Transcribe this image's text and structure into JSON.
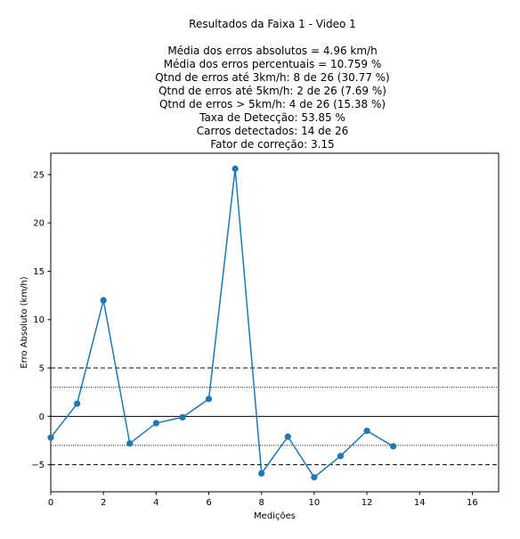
{
  "chart_data": {
    "type": "line",
    "title_lines": [
      "Resultados da Faixa 1 - Video 1",
      "",
      "Média dos erros absolutos =  4.96 km/h",
      "Média dos erros percentuais = 10.759 %",
      "Qtnd de erros até 3km/h: 8 de 26 (30.77 %)",
      "Qtnd de erros até 5km/h: 2 de 26 (7.69 %)",
      "Qtnd de erros > 5km/h: 4 de 26 (15.38 %)",
      "Taxa de Detecção: 53.85 %",
      "Carros detectados: 14 de 26",
      "Fator de correção: 3.15"
    ],
    "xlabel": "Medições",
    "ylabel": "Erro Absoluto (km/h)",
    "xlim": [
      0,
      17
    ],
    "ylim": [
      -7.8,
      27.2
    ],
    "x_ticks": [
      0,
      2,
      4,
      6,
      8,
      10,
      12,
      14,
      16
    ],
    "y_ticks": [
      -5,
      0,
      5,
      10,
      15,
      20,
      25
    ],
    "grid": false,
    "series": [
      {
        "color": "#1f77b4",
        "marker": "circle",
        "x": [
          0,
          1,
          2,
          3,
          4,
          5,
          6,
          7,
          8,
          9,
          10,
          11,
          12,
          13
        ],
        "y": [
          -2.2,
          1.3,
          12.0,
          -2.8,
          -0.7,
          -0.1,
          1.8,
          25.6,
          -5.9,
          -2.1,
          -6.3,
          -4.1,
          -1.5,
          -3.1
        ]
      }
    ],
    "reference_lines": [
      {
        "y": 5,
        "style": "dashed",
        "color": "#000000"
      },
      {
        "y": -5,
        "style": "dashed",
        "color": "#000000"
      },
      {
        "y": 3,
        "style": "dotted",
        "color": "#000000"
      },
      {
        "y": -3,
        "style": "dotted",
        "color": "#000000"
      },
      {
        "y": 0,
        "style": "solid",
        "color": "#000000"
      }
    ]
  }
}
